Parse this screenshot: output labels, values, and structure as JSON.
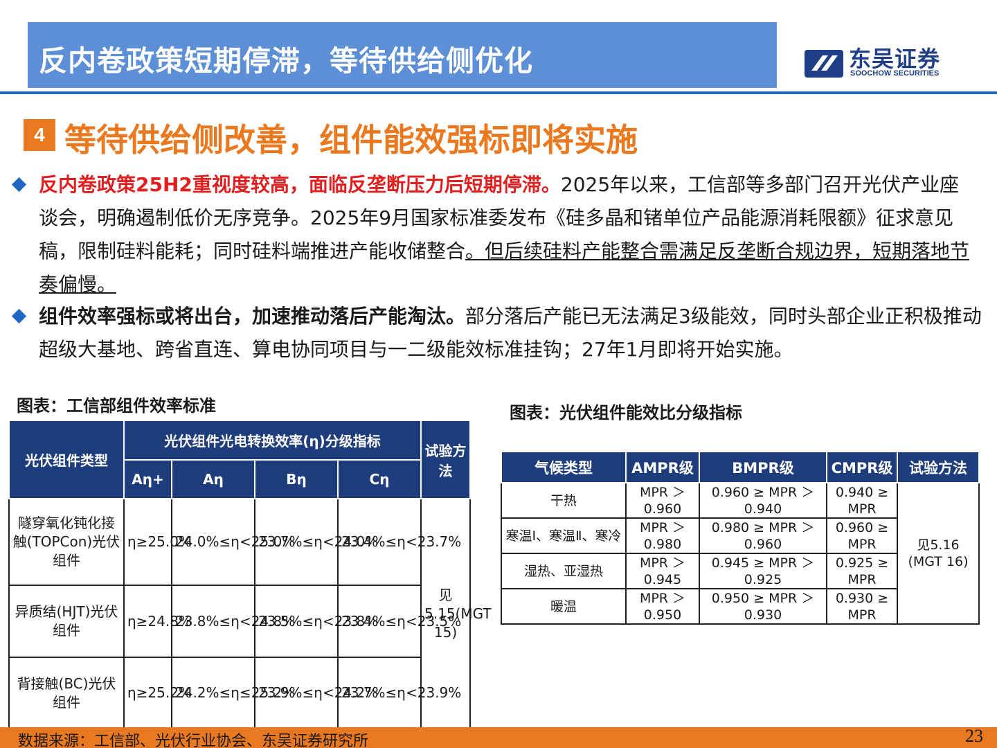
{
  "header": {
    "title": "反内卷政策短期停滞，等待供给侧优化",
    "logo_cn": "东吴证券",
    "logo_en": "SOOCHOW SECURITIES"
  },
  "section": {
    "number": "4",
    "title": "等待供给侧改善，组件能效强标即将实施"
  },
  "bullets": [
    {
      "lead": "反内卷政策25H2重视度较高，面临反垄断压力后短期停滞。",
      "body": "2025年以来，工信部等多部门召开光伏产业座谈会，明确遏制低价无序竞争。2025年9月国家标准委发布《硅多晶和锗单位产品能源消耗限额》征求意见稿，限制硅料能耗；同时硅料端推进产能收储整合",
      "underlined": "。但后续硅料产能整合需满足反垄断合规边界，短期落地节奏偏慢。"
    },
    {
      "lead": "组件效率强标或将出台，加速推动落后产能淘汰。",
      "body": "部分落后产能已无法满足3级能效，同时头部企业正积极推动超级大基地、跨省直连、算电协同项目与一二级能效标准挂钩；27年1月即将开始实施。"
    }
  ],
  "table1": {
    "caption": "图表：工信部组件效率标准",
    "header_type": "光伏组件类型",
    "header_group": "光伏组件光电转换效率(η)分级指标",
    "header_method": "试验方法",
    "sub_headers": [
      "Aη+",
      "Aη",
      "Bη",
      "Cη"
    ],
    "rows": [
      {
        "type": "隧穿氧化钝化接触(TOPCon)光伏组件",
        "cells": [
          "η≥25.0%",
          "24.0%≤η<25.0%",
          "23.7%≤η<24.0%",
          "23.4%≤η<23.7%"
        ]
      },
      {
        "type": "异质结(HJT)光伏组件",
        "cells": [
          "η≥24.8%",
          "23.8%≤η<24.8%",
          "23.5%≤η<23.8%",
          "23.4%≤η<23.5%"
        ]
      },
      {
        "type": "背接触(BC)光伏组件",
        "cells": [
          "η≥25.2%",
          "24.2%≤η≤25.2%",
          "23.9%≤η<24.2%",
          "23.7%≤η<23.9%"
        ]
      }
    ],
    "method": "见5.15(MGT 15)"
  },
  "table2": {
    "caption": "图表：光伏组件能效比分级指标",
    "headers": [
      "气候类型",
      "AMPR级",
      "BMPR级",
      "CMPR级",
      "试验方法"
    ],
    "rows": [
      {
        "climate": "干热",
        "a": "MPR ＞ 0.960",
        "b": "0.960 ≥ MPR ＞ 0.940",
        "c": "0.940 ≥ MPR"
      },
      {
        "climate": "寒温Ⅰ、寒温Ⅱ、寒冷",
        "a": "MPR ＞ 0.980",
        "b": "0.980 ≥ MPR ＞ 0.960",
        "c": "0.960 ≥ MPR"
      },
      {
        "climate": "湿热、亚湿热",
        "a": "MPR ＞ 0.945",
        "b": "0.945 ≥ MPR ＞ 0.925",
        "c": "0.925 ≥ MPR"
      },
      {
        "climate": "暖温",
        "a": "MPR ＞ 0.950",
        "b": "0.950 ≥ MPR ＞ 0.930",
        "c": "0.930 ≥ MPR"
      }
    ],
    "method": "见5.16 (MGT 16)"
  },
  "footer": {
    "source": "数据来源：工信部、光伏行业协会、东吴证券研究所",
    "page": "23"
  },
  "colors": {
    "title_bar": "#5c8fd6",
    "accent_orange": "#e9781f",
    "navy": "#1e3d7c",
    "bullet_blue": "#1f67c2",
    "highlight_red": "#e02020"
  }
}
